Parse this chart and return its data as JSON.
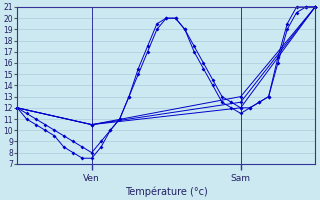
{
  "xlabel": "Température (°c)",
  "background_color": "#cce8f0",
  "grid_color": "#aaccdd",
  "line_color": "#0000cc",
  "ylim": [
    7,
    21
  ],
  "yticks": [
    7,
    8,
    9,
    10,
    11,
    12,
    13,
    14,
    15,
    16,
    17,
    18,
    19,
    20,
    21
  ],
  "ven_x": 24,
  "sam_x": 72,
  "xlim": [
    0,
    96
  ],
  "series1_x": [
    0,
    3,
    6,
    9,
    12,
    15,
    18,
    21,
    24,
    27,
    30,
    33,
    36,
    39,
    42,
    45,
    48,
    51,
    54,
    57,
    60,
    63,
    66,
    69,
    72,
    75,
    78,
    81,
    84,
    87,
    90,
    93,
    96
  ],
  "series1_y": [
    12,
    11.5,
    11,
    10.5,
    10,
    9.5,
    9,
    8.5,
    8,
    9,
    10,
    11,
    13,
    15,
    17,
    19,
    20,
    20,
    19,
    17.5,
    16,
    14.5,
    13,
    12.5,
    12,
    12,
    12.5,
    13,
    16,
    19,
    20.5,
    21,
    21
  ],
  "series2_x": [
    0,
    3,
    6,
    9,
    12,
    15,
    18,
    21,
    24,
    27,
    30,
    33,
    36,
    39,
    42,
    45,
    48,
    51,
    54,
    57,
    60,
    63,
    66,
    69,
    72,
    75,
    78,
    81,
    84,
    87,
    90,
    93,
    96
  ],
  "series2_y": [
    12,
    11,
    10.5,
    10,
    9.5,
    8.5,
    8,
    7.5,
    7.5,
    8.5,
    10,
    11,
    13,
    15.5,
    17.5,
    19.5,
    20,
    20,
    19,
    17,
    15.5,
    14,
    12.5,
    12,
    11.5,
    12,
    12.5,
    13,
    16.5,
    19.5,
    21,
    21,
    21
  ],
  "series3_x": [
    0,
    24,
    72,
    96
  ],
  "series3_y": [
    12,
    10.5,
    12,
    21
  ],
  "series4_x": [
    0,
    24,
    72,
    96
  ],
  "series4_y": [
    12,
    10.5,
    13,
    21
  ],
  "series5_x": [
    0,
    24,
    72,
    96
  ],
  "series5_y": [
    12,
    10.5,
    12.5,
    21
  ]
}
